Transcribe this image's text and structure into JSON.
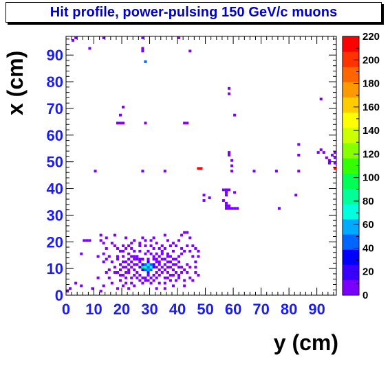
{
  "chart_data": {
    "type": "heatmap",
    "title": "Hit profile, power-pulsing 150 GeV/c muons",
    "xlabel": "y (cm)",
    "ylabel": "x (cm)",
    "xlim": [
      0,
      97
    ],
    "ylim": [
      0,
      97
    ],
    "bin_size": 1,
    "x_ticks": [
      "0",
      "10",
      "20",
      "30",
      "40",
      "50",
      "60",
      "70",
      "80",
      "90"
    ],
    "y_ticks": [
      "0",
      "10",
      "20",
      "30",
      "40",
      "50",
      "60",
      "70",
      "80",
      "90"
    ],
    "z_range": [
      0,
      220
    ],
    "palette_ticks": [
      "0",
      "20",
      "40",
      "60",
      "80",
      "100",
      "120",
      "140",
      "160",
      "180",
      "200",
      "220"
    ],
    "colors": [
      "#7a00ff",
      "#3a00ff",
      "#0000ff",
      "#0066ff",
      "#00aaff",
      "#00ffdd",
      "#00ff99",
      "#00ff55",
      "#33ff00",
      "#88ff00",
      "#ccff00",
      "#ffff00",
      "#ffcc00",
      "#ff9900",
      "#ff6600",
      "#ff3300",
      "#ff0000"
    ],
    "bins": [
      [
        27,
        10,
        95
      ],
      [
        28,
        10,
        70
      ],
      [
        29,
        10,
        45
      ],
      [
        30,
        10,
        70
      ],
      [
        29,
        11,
        70
      ],
      [
        29,
        9,
        60
      ],
      [
        28,
        9,
        40
      ],
      [
        30,
        11,
        50
      ],
      [
        28,
        11,
        40
      ],
      [
        30,
        9,
        40
      ],
      [
        29,
        12,
        25
      ],
      [
        27,
        11,
        25
      ],
      [
        31,
        10,
        25
      ],
      [
        29,
        8,
        20
      ],
      [
        27,
        9,
        20
      ],
      [
        31,
        11,
        15
      ],
      [
        26,
        10,
        15
      ],
      [
        32,
        10,
        10
      ],
      [
        29,
        13,
        10
      ],
      [
        29,
        7,
        10
      ],
      [
        18,
        8,
        3
      ],
      [
        19,
        9,
        3
      ],
      [
        20,
        10,
        4
      ],
      [
        21,
        10,
        3
      ],
      [
        22,
        11,
        4
      ],
      [
        23,
        12,
        3
      ],
      [
        24,
        9,
        5
      ],
      [
        25,
        8,
        4
      ],
      [
        26,
        7,
        3
      ],
      [
        27,
        6,
        3
      ],
      [
        28,
        6,
        4
      ],
      [
        30,
        6,
        3
      ],
      [
        31,
        7,
        4
      ],
      [
        32,
        8,
        5
      ],
      [
        33,
        9,
        4
      ],
      [
        34,
        10,
        3
      ],
      [
        35,
        11,
        4
      ],
      [
        36,
        12,
        3
      ],
      [
        37,
        10,
        3
      ],
      [
        38,
        9,
        4
      ],
      [
        39,
        8,
        3
      ],
      [
        33,
        12,
        4
      ],
      [
        34,
        13,
        3
      ],
      [
        32,
        13,
        3
      ],
      [
        24,
        13,
        3
      ],
      [
        25,
        14,
        3
      ],
      [
        23,
        14,
        3
      ],
      [
        22,
        9,
        3
      ],
      [
        21,
        8,
        3
      ],
      [
        20,
        7,
        3
      ],
      [
        19,
        11,
        3
      ],
      [
        20,
        12,
        3
      ],
      [
        26,
        12,
        4
      ],
      [
        26,
        13,
        3
      ],
      [
        25,
        11,
        5
      ],
      [
        24,
        11,
        4
      ],
      [
        23,
        10,
        4
      ],
      [
        22,
        8,
        3
      ],
      [
        31,
        13,
        3
      ],
      [
        32,
        12,
        5
      ],
      [
        33,
        11,
        4
      ],
      [
        34,
        8,
        3
      ],
      [
        35,
        9,
        3
      ],
      [
        36,
        8,
        3
      ],
      [
        37,
        7,
        3
      ],
      [
        25,
        6,
        3
      ],
      [
        26,
        5,
        3
      ],
      [
        24,
        7,
        3
      ],
      [
        33,
        7,
        3
      ],
      [
        32,
        6,
        3
      ],
      [
        31,
        5,
        3
      ],
      [
        28,
        5,
        3
      ],
      [
        29,
        5,
        3
      ],
      [
        27,
        4,
        3
      ],
      [
        30,
        4,
        3
      ],
      [
        35,
        6,
        3
      ],
      [
        36,
        10,
        3
      ],
      [
        37,
        12,
        3
      ],
      [
        38,
        11,
        3
      ],
      [
        39,
        13,
        3
      ],
      [
        40,
        12,
        3
      ],
      [
        41,
        10,
        3
      ],
      [
        42,
        9,
        3
      ],
      [
        43,
        11,
        3
      ],
      [
        40,
        14,
        3
      ],
      [
        41,
        15,
        3
      ],
      [
        42,
        16,
        3
      ],
      [
        38,
        16,
        3
      ],
      [
        36,
        15,
        3
      ],
      [
        34,
        15,
        3
      ],
      [
        30,
        15,
        3
      ],
      [
        28,
        15,
        3
      ],
      [
        26,
        16,
        3
      ],
      [
        24,
        16,
        3
      ],
      [
        22,
        15,
        3
      ],
      [
        20,
        14,
        3
      ],
      [
        18,
        13,
        3
      ],
      [
        16,
        12,
        3
      ],
      [
        17,
        10,
        3
      ],
      [
        15,
        9,
        3
      ],
      [
        14,
        8,
        3
      ],
      [
        15,
        6,
        3
      ],
      [
        16,
        4,
        3
      ],
      [
        19,
        5,
        3
      ],
      [
        21,
        4,
        3
      ],
      [
        23,
        4,
        3
      ],
      [
        29,
        16,
        3
      ],
      [
        31,
        17,
        3
      ],
      [
        33,
        17,
        3
      ],
      [
        35,
        17,
        3
      ],
      [
        37,
        18,
        3
      ],
      [
        39,
        18,
        3
      ],
      [
        41,
        17,
        3
      ],
      [
        43,
        18,
        3
      ],
      [
        44,
        16,
        3
      ],
      [
        45,
        14,
        3
      ],
      [
        46,
        12,
        3
      ],
      [
        44,
        10,
        3
      ],
      [
        43,
        8,
        3
      ],
      [
        44,
        6,
        3
      ],
      [
        45,
        5,
        3
      ],
      [
        42,
        5,
        3
      ],
      [
        40,
        6,
        3
      ],
      [
        39,
        5,
        3
      ],
      [
        37,
        5,
        3
      ],
      [
        35,
        4,
        3
      ],
      [
        33,
        4,
        3
      ],
      [
        42,
        3,
        3
      ],
      [
        38,
        3,
        3
      ],
      [
        35,
        2,
        3
      ],
      [
        32,
        2,
        3
      ],
      [
        24,
        3,
        3
      ],
      [
        22,
        2,
        3
      ],
      [
        20,
        3,
        3
      ],
      [
        18,
        2,
        3
      ],
      [
        13,
        3,
        3
      ],
      [
        12,
        1,
        3
      ],
      [
        9,
        2,
        3
      ],
      [
        5,
        3,
        3
      ],
      [
        3,
        4,
        3
      ],
      [
        1,
        2,
        3
      ],
      [
        0,
        1,
        3
      ],
      [
        11,
        14,
        3
      ],
      [
        13,
        15,
        3
      ],
      [
        14,
        17,
        3
      ],
      [
        13,
        19,
        3
      ],
      [
        12,
        20,
        3
      ],
      [
        14,
        21,
        3
      ],
      [
        16,
        19,
        3
      ],
      [
        18,
        17,
        3
      ],
      [
        19,
        16,
        3
      ],
      [
        21,
        17,
        3
      ],
      [
        22,
        18,
        3
      ],
      [
        23,
        19,
        3
      ],
      [
        24,
        20,
        3
      ],
      [
        26,
        19,
        3
      ],
      [
        28,
        20,
        3
      ],
      [
        30,
        20,
        3
      ],
      [
        32,
        19,
        3
      ],
      [
        34,
        18,
        3
      ],
      [
        36,
        20,
        3
      ],
      [
        38,
        19,
        3
      ],
      [
        40,
        20,
        3
      ],
      [
        41,
        22,
        3
      ],
      [
        42,
        23,
        3
      ],
      [
        43,
        23,
        3
      ],
      [
        44,
        21,
        3
      ],
      [
        45,
        18,
        3
      ],
      [
        46,
        17,
        3
      ],
      [
        47,
        16,
        3
      ],
      [
        47,
        14,
        3
      ],
      [
        46,
        10,
        3
      ],
      [
        46,
        8,
        3
      ],
      [
        47,
        7,
        3
      ],
      [
        35,
        22,
        3
      ],
      [
        31,
        21,
        3
      ],
      [
        21,
        21,
        3
      ],
      [
        17,
        22,
        3
      ],
      [
        12,
        22,
        3
      ],
      [
        6,
        20,
        3
      ],
      [
        7,
        20,
        3
      ],
      [
        8,
        20,
        3
      ],
      [
        5,
        15,
        3
      ],
      [
        11,
        6,
        3
      ],
      [
        13,
        12,
        3
      ],
      [
        14,
        13,
        3
      ],
      [
        15,
        14,
        3
      ],
      [
        18,
        14,
        3
      ],
      [
        20,
        16,
        3
      ],
      [
        17,
        18,
        3
      ],
      [
        27,
        21,
        3
      ],
      [
        28,
        18,
        3
      ],
      [
        32,
        15,
        3
      ],
      [
        27,
        13,
        3
      ],
      [
        25,
        13,
        3
      ],
      [
        22,
        13,
        3
      ],
      [
        31,
        14,
        3
      ],
      [
        33,
        14,
        3
      ],
      [
        36,
        14,
        3
      ],
      [
        38,
        13,
        3
      ],
      [
        39,
        11,
        3
      ],
      [
        40,
        10,
        3
      ],
      [
        41,
        8,
        3
      ],
      [
        40,
        7,
        3
      ],
      [
        38,
        7,
        3
      ],
      [
        36,
        6,
        3
      ],
      [
        23,
        6,
        3
      ],
      [
        21,
        6,
        3
      ],
      [
        19,
        7,
        3
      ],
      [
        17,
        8,
        3
      ],
      [
        21,
        12,
        3
      ],
      [
        24,
        14,
        3
      ],
      [
        35,
        13,
        3
      ],
      [
        37,
        14,
        3
      ],
      [
        34,
        16,
        3
      ],
      [
        30,
        18,
        3
      ],
      [
        26,
        18,
        3
      ],
      [
        23,
        17,
        3
      ],
      [
        20,
        18,
        3
      ],
      [
        47,
        47,
        210
      ],
      [
        48,
        47,
        210
      ],
      [
        96,
        47,
        230
      ],
      [
        10,
        46,
        3
      ],
      [
        27,
        46,
        3
      ],
      [
        35,
        46,
        3
      ],
      [
        59,
        46,
        3
      ],
      [
        67,
        46,
        3
      ],
      [
        75,
        46,
        3
      ],
      [
        83,
        46,
        3
      ],
      [
        59,
        48,
        3
      ],
      [
        59,
        50,
        3
      ],
      [
        58,
        52,
        3
      ],
      [
        58,
        53,
        3
      ],
      [
        83,
        52,
        3
      ],
      [
        83,
        56,
        3
      ],
      [
        90,
        53,
        3
      ],
      [
        91,
        54,
        3
      ],
      [
        92,
        53,
        3
      ],
      [
        93,
        51,
        3
      ],
      [
        94,
        50,
        3
      ],
      [
        94,
        49,
        3
      ],
      [
        95,
        52,
        3
      ],
      [
        96,
        53,
        3
      ],
      [
        96,
        51,
        3
      ],
      [
        96,
        49,
        3
      ],
      [
        57,
        38,
        3
      ],
      [
        56,
        39,
        3
      ],
      [
        57,
        39,
        3
      ],
      [
        58,
        39,
        3
      ],
      [
        57,
        37,
        3
      ],
      [
        56,
        35,
        3
      ],
      [
        57,
        34,
        3
      ],
      [
        57,
        33,
        3
      ],
      [
        58,
        32,
        3
      ],
      [
        59,
        32,
        3
      ],
      [
        60,
        32,
        3
      ],
      [
        61,
        32,
        3
      ],
      [
        58,
        33,
        3
      ],
      [
        57,
        32,
        3
      ],
      [
        60,
        38,
        3
      ],
      [
        49,
        37,
        3
      ],
      [
        49,
        35,
        3
      ],
      [
        51,
        36,
        3
      ],
      [
        82,
        37,
        3
      ],
      [
        76,
        32,
        3
      ],
      [
        58,
        75,
        3
      ],
      [
        58,
        77,
        3
      ],
      [
        60,
        67,
        3
      ],
      [
        91,
        73,
        3
      ],
      [
        19,
        67,
        3
      ],
      [
        20,
        70,
        3
      ],
      [
        18,
        64,
        3
      ],
      [
        19,
        64,
        3
      ],
      [
        20,
        64,
        3
      ],
      [
        28,
        64,
        3
      ],
      [
        43,
        64,
        3
      ],
      [
        42,
        64,
        3
      ],
      [
        28,
        87,
        40
      ],
      [
        27,
        91,
        3
      ],
      [
        27,
        92,
        3
      ],
      [
        3,
        96,
        3
      ],
      [
        2,
        95,
        3
      ],
      [
        8,
        92,
        3
      ],
      [
        13,
        96,
        3
      ],
      [
        27,
        96,
        3
      ],
      [
        44,
        91,
        3
      ],
      [
        40,
        96,
        3
      ]
    ]
  }
}
